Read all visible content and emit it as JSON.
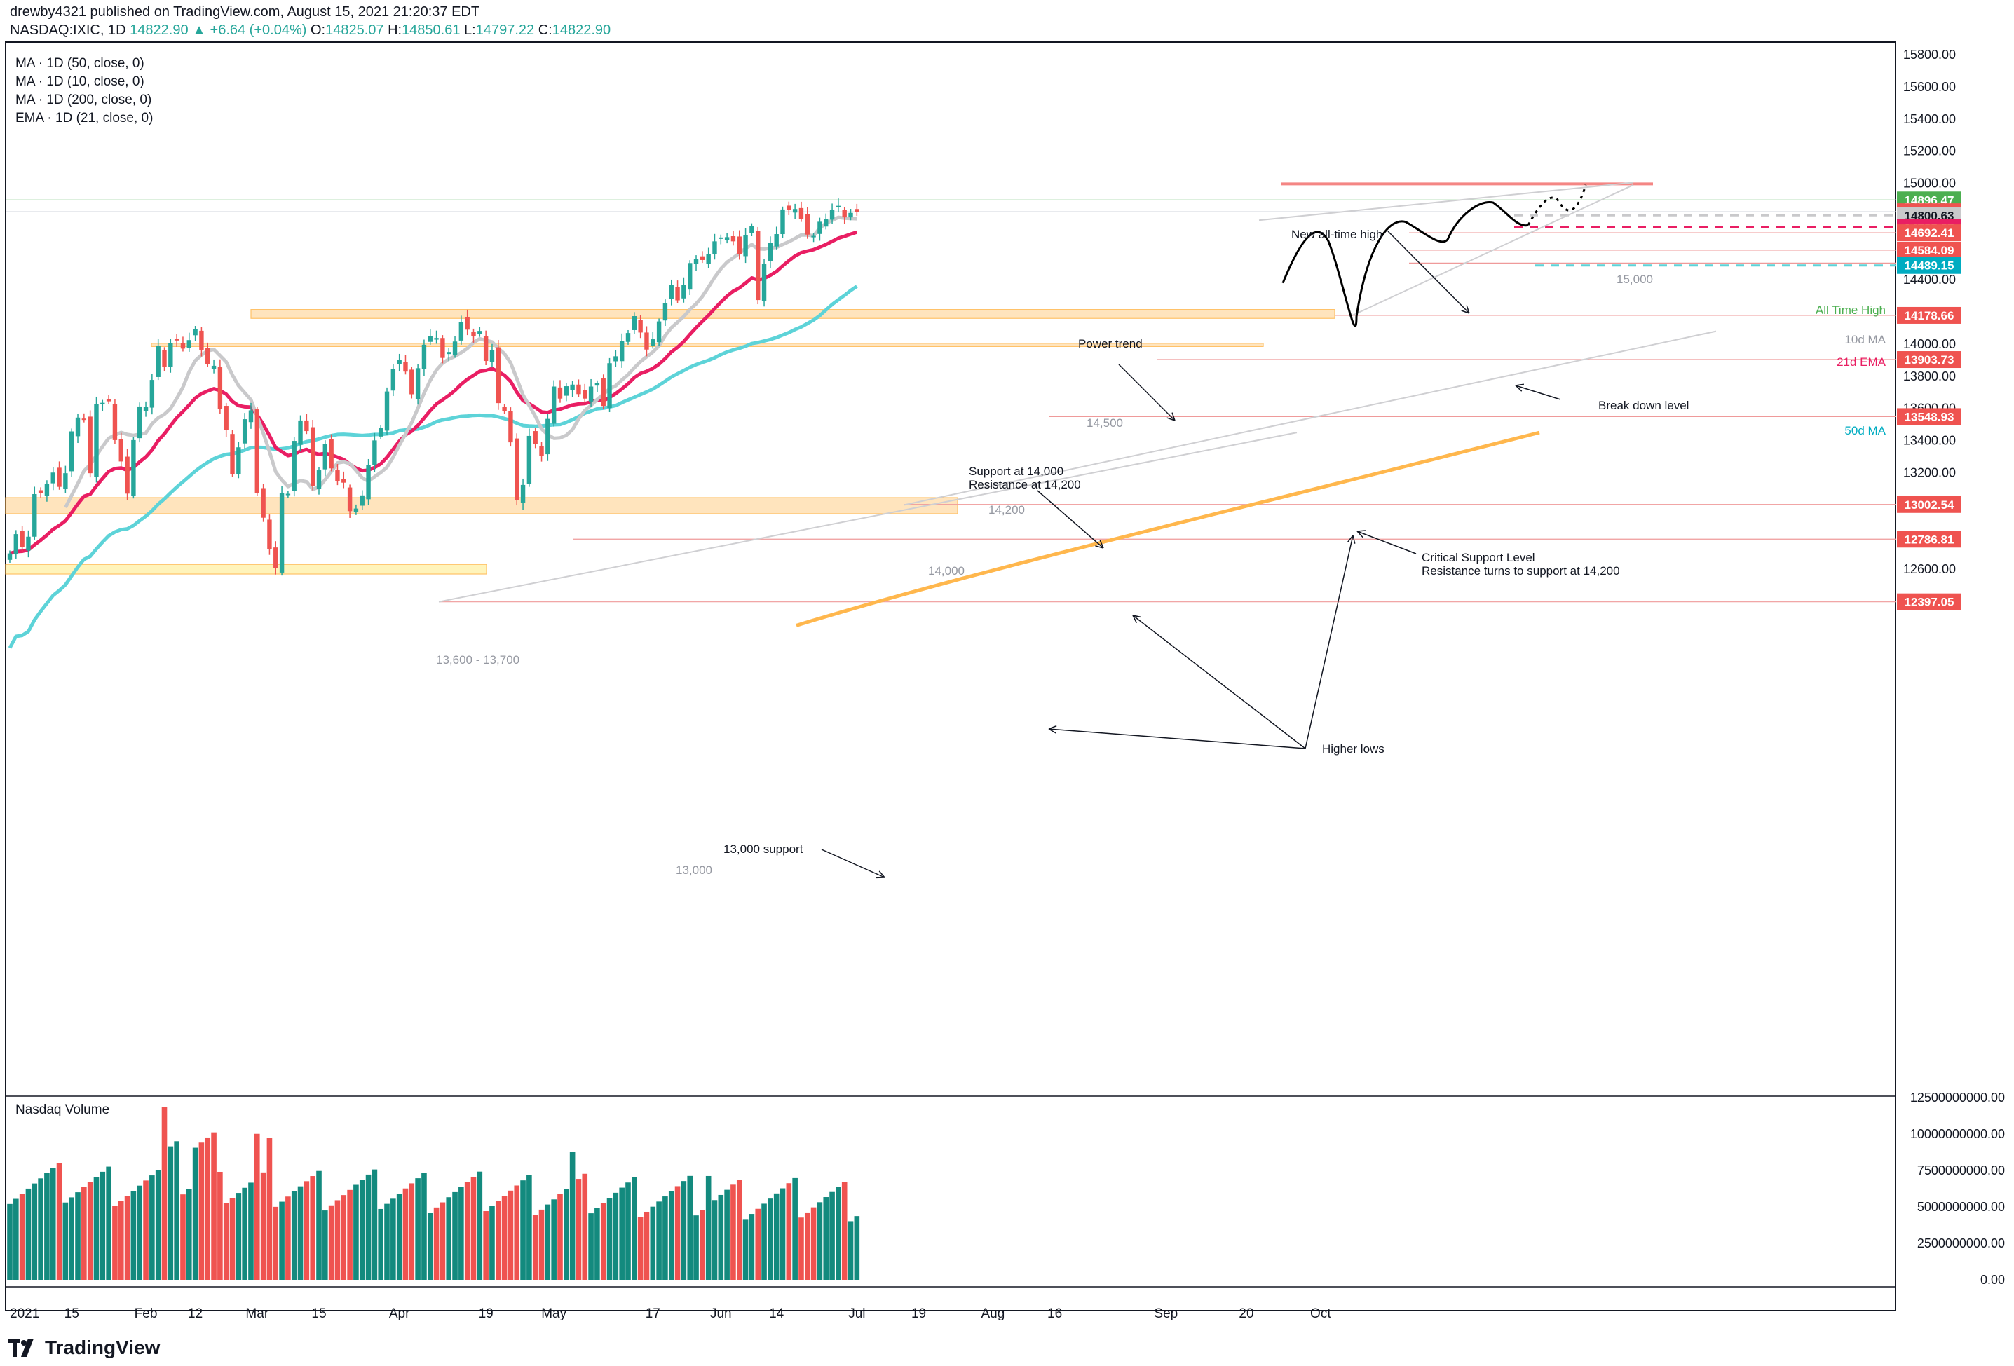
{
  "header": {
    "publisher_line": "drewby4321 published on TradingView.com, August 15, 2021 21:20:37 EDT",
    "symbol": "NASDAQ:IXIC, 1D",
    "last": "14822.90",
    "change": "+6.64 (+0.04%)",
    "open": "14825.07",
    "high": "14850.61",
    "low": "14797.22",
    "close": "14822.90"
  },
  "indicators": [
    "MA · 1D (50, close, 0)",
    "MA · 1D (10, close, 0)",
    "MA · 1D (200, close, 0)",
    "EMA · 1D (21, close, 0)"
  ],
  "volume_label": "Nasdaq Volume",
  "branding": {
    "logo_text": "TradingView"
  },
  "colors": {
    "up": "#26a69a",
    "up_volume": "#138a7e",
    "down": "#ef5350",
    "ma10": "#c9c9cb",
    "ema21": "#e91e63",
    "ma50": "#5dd3d8",
    "ma200": "#ffb74d",
    "zone": "#ffe0b2",
    "ath": "#4caf50"
  },
  "chart_data": {
    "type": "candlestick",
    "title": "NASDAQ:IXIC, 1D",
    "x_ticks": [
      "2021",
      "15",
      "Feb",
      "12",
      "Mar",
      "15",
      "Apr",
      "19",
      "May",
      "17",
      "Jun",
      "14",
      "Jul",
      "19",
      "Aug",
      "16",
      "Sep",
      "20",
      "Oct"
    ],
    "x_tick_index": [
      0,
      10,
      22,
      30,
      40,
      50,
      63,
      77,
      88,
      104,
      115,
      124,
      137,
      147,
      159,
      169,
      187,
      200,
      212
    ],
    "y_ticks": [
      "15800.00",
      "15600.00",
      "15400.00",
      "15200.00",
      "15000.00",
      "14800.00",
      "14600.00",
      "14400.00",
      "14200.00",
      "14000.00",
      "13800.00",
      "13600.00",
      "13400.00",
      "13200.00",
      "13000.00",
      "12800.00",
      "12600.00",
      "12400.00"
    ],
    "volume_ticks": [
      "12500000000.00",
      "10000000000.00",
      "7500000000.00",
      "5000000000.00",
      "2500000000.00",
      "0.00"
    ],
    "ylim": [
      12200,
      15850
    ],
    "ohlc_sample": {
      "dates": [
        "2021-01-04",
        "2021-01-29",
        "2021-02-12",
        "2021-03-08",
        "2021-04-16",
        "2021-04-29",
        "2021-05-12",
        "2021-06-18",
        "2021-07-19",
        "2021-08-04",
        "2021-08-13"
      ],
      "close": [
        12698,
        13070,
        14095,
        12609,
        14052,
        14082,
        13031,
        14030,
        14274,
        14780,
        14822.9
      ],
      "note_hint": ""
    },
    "close_path": [
      12698,
      12818,
      12740,
      12802,
      13067,
      13072,
      13128,
      13201,
      13112,
      13197,
      13457,
      13543,
      13531,
      13197,
      13627,
      13635,
      13644,
      13403,
      13270,
      13070,
      13403,
      13612,
      13611,
      13777,
      13987,
      13856,
      14007,
      14025,
      13972,
      14025,
      14095,
      13965,
      13874,
      13865,
      13598,
      13465,
      13192,
      13358,
      13533,
      13588,
      13074,
      12920,
      12723,
      12609,
      13073,
      13069,
      13398,
      13525,
      13459,
      13116,
      13215,
      13377,
      13227,
      13149,
      13138,
      12961,
      12977,
      13059,
      13246,
      13401,
      13480,
      13705,
      13845,
      13900,
      13829,
      13688,
      13850,
      13996,
      14052,
      14038,
      13914,
      13951,
      14016,
      14138,
      14090,
      14051,
      14082,
      13895,
      13962,
      13633,
      13582,
      13389,
      13031,
      13124,
      13429,
      13379,
      13303,
      13535,
      13736,
      13661,
      13738,
      13748,
      13689,
      13661,
      13736,
      13756,
      13615,
      13881,
      13924,
      14020,
      14069,
      14174,
      14072,
      13966,
      14030,
      14141,
      14253,
      14369,
      14272,
      14369,
      14504,
      14528,
      14523,
      14560,
      14639,
      14663,
      14665,
      14639,
      14559,
      14677,
      14733,
      14274,
      14498,
      14631,
      14684,
      14837,
      14836,
      14840,
      14778,
      14681,
      14673,
      14761,
      14780,
      14835,
      14860,
      14788,
      14816,
      14822.9
    ],
    "horizontal_levels": [
      14896.47,
      14822.9,
      14800.63,
      14725.27,
      14692.41,
      14584.09,
      14503.76,
      14489.15,
      14178.66,
      13903.73,
      13548.93,
      13002.54,
      12786.81,
      12397.05
    ],
    "price_badges": [
      {
        "price": 14896.47,
        "text": "14896.47",
        "color": "#4caf50"
      },
      {
        "price": 14822.9,
        "text": "14822.90",
        "color": "#ef5350"
      },
      {
        "price": 14800.63,
        "text": "14800.63",
        "color": "#c9c9cb",
        "text_color": "#131722"
      },
      {
        "price": 14725.27,
        "text": "14725.27",
        "color": "#e91e63"
      },
      {
        "price": 14692.41,
        "text": "14692.41",
        "color": "#ef5350"
      },
      {
        "price": 14584.09,
        "text": "14584.09",
        "color": "#ef5350"
      },
      {
        "price": 14503.76,
        "text": "14503.76",
        "color": "#ef5350"
      },
      {
        "price": 14489.15,
        "text": "14489.15",
        "color": "#00acc1"
      },
      {
        "price": 14178.66,
        "text": "14178.66",
        "color": "#ef5350"
      },
      {
        "price": 13903.73,
        "text": "13903.73",
        "color": "#ef5350"
      },
      {
        "price": 13548.93,
        "text": "13548.93",
        "color": "#ef5350"
      },
      {
        "price": 13002.54,
        "text": "13002.54",
        "color": "#ef5350"
      },
      {
        "price": 12786.81,
        "text": "12786.81",
        "color": "#ef5350"
      },
      {
        "price": 12397.05,
        "text": "12397.05",
        "color": "#ef5350"
      }
    ],
    "series": [
      {
        "name": "MA · 1D (10, close, 0)",
        "color": "#c9c9cb"
      },
      {
        "name": "EMA · 1D (21, close, 0)",
        "color": "#e91e63"
      },
      {
        "name": "MA · 1D (50, close, 0)",
        "color": "#5dd3d8"
      },
      {
        "name": "MA · 1D (200, close, 0)",
        "color": "#ffb74d"
      }
    ],
    "annotations": {
      "new_ath": "New all-time high",
      "level_15000": "15,000",
      "all_time_high": "All Time High",
      "ma10_label": "10d MA",
      "ema21_label": "21d EMA",
      "ma50_label": "50d MA",
      "power_trend": "Power trend",
      "level_14500": "14,500",
      "support_14000": "Support at 14,000",
      "resistance_14200": "Resistance at 14,200",
      "level_14200": "14,200",
      "level_14000": "14,000",
      "level_13600_13700": "13,600 - 13,700",
      "break_down": "Break down level",
      "critical_support": "Critical Support Level",
      "resistance_turns": "Resistance turns to support at 14,200",
      "higher_lows": "Higher lows",
      "support_13000": "13,000 support",
      "level_13000": "13,000"
    }
  }
}
